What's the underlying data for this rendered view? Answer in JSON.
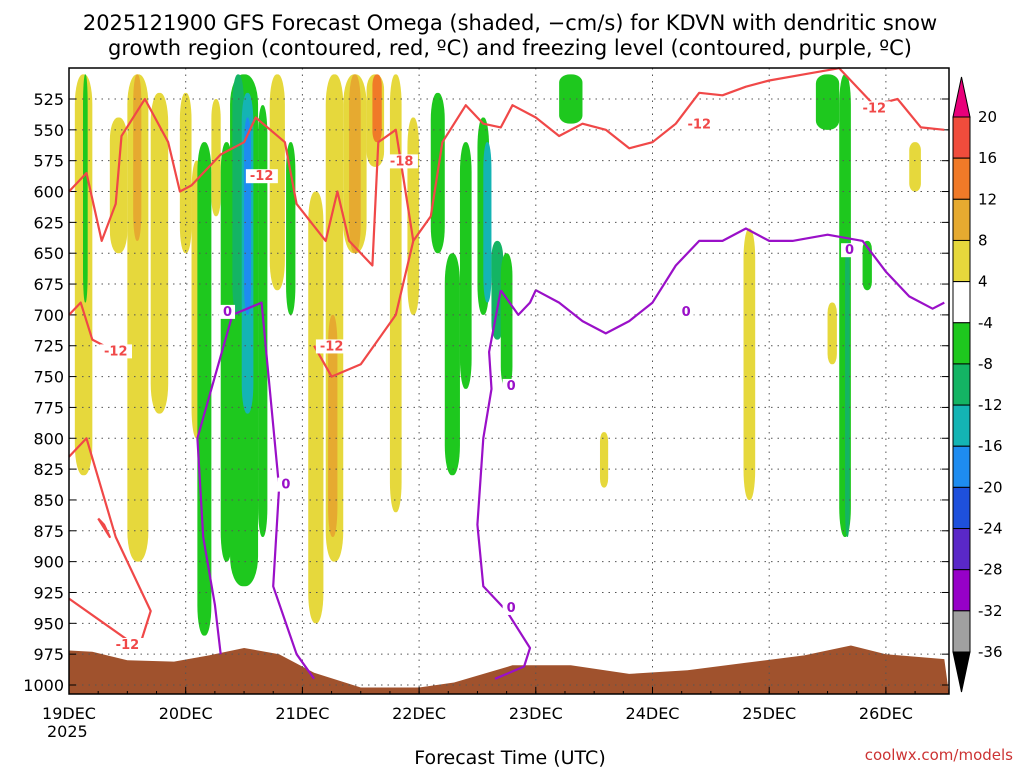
{
  "chart_data": {
    "type": "heatmap",
    "title": "2025121900 GFS Forecast Omega (shaded, −cm/s) for KDVN with dendritic snow growth region (contoured, red, ºC) and freezing level (contoured, purple, ºC)",
    "title_lines": [
      "2025121900 GFS Forecast Omega (shaded, −cm/s) for KDVN with dendritic snow",
      "growth region (contoured, red, ºC) and freezing level (contoured, purple, ºC)"
    ],
    "xlabel": "Forecast Time (UTC)",
    "ylabel": "",
    "credit": "coolwx.com/models",
    "x_ticks": [
      "19DEC",
      "20DEC",
      "21DEC",
      "22DEC",
      "23DEC",
      "24DEC",
      "25DEC",
      "26DEC"
    ],
    "x_year": "2025",
    "x_range_days": [
      0,
      7.5
    ],
    "y_ticks": [
      525,
      550,
      575,
      600,
      625,
      650,
      675,
      700,
      725,
      750,
      775,
      800,
      825,
      850,
      875,
      900,
      925,
      950,
      975,
      1000
    ],
    "y_range_hpa": [
      500,
      1010
    ],
    "colorbar": {
      "labels": [
        "20",
        "16",
        "12",
        "8",
        "4",
        "-4",
        "-8",
        "-12",
        "-16",
        "-20",
        "-24",
        "-28",
        "-32",
        "-36"
      ],
      "colors": [
        "#e8007a",
        "#f04c3c",
        "#f07a28",
        "#e6aa30",
        "#e6d83c",
        "#ffffff",
        "#1ec81e",
        "#14b464",
        "#14b4b4",
        "#1e8cf0",
        "#1e50dc",
        "#5a28c8",
        "#9600c8",
        "#a0a0a0",
        "#000000"
      ]
    },
    "contour_labels": {
      "dgz": [
        "-12",
        "-12",
        "-12",
        "-12",
        "-18",
        "-12",
        "-12"
      ],
      "freezing": [
        "0",
        "0",
        "0",
        "0",
        "0",
        "0"
      ]
    },
    "series_notes": {
      "shaded": "Omega in -cm/s; green/teal = rising motion, yellow/orange = sinking motion",
      "red_contour": "Dendritic snow growth region boundary (-12 to -18 ºC)",
      "purple_contour": "Freezing level (0 ºC)",
      "brown_fill": "Terrain / below ground"
    },
    "colors": {
      "red_contour": "#f04848",
      "purple_contour": "#9a10c8",
      "terrain": "#a0522d"
    }
  }
}
